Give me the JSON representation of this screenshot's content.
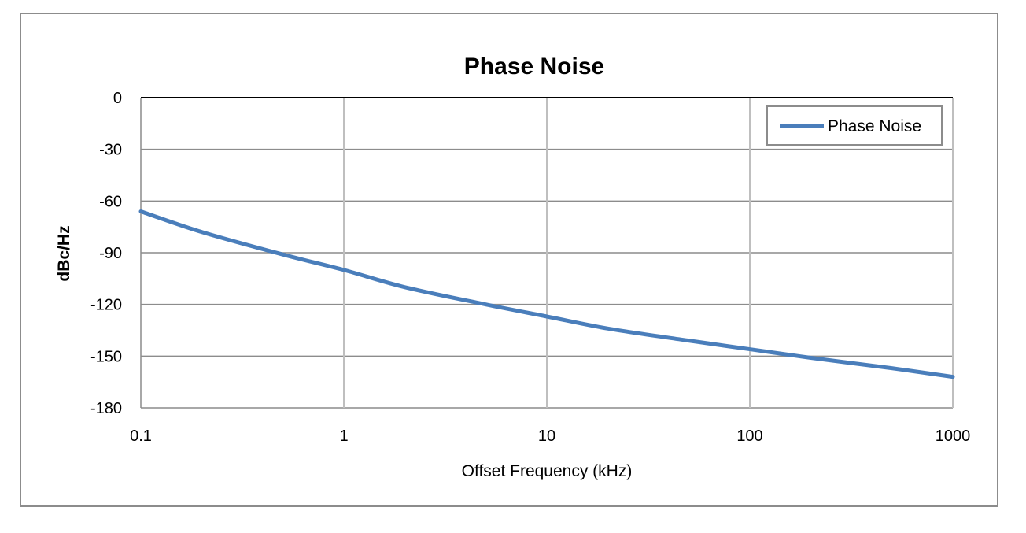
{
  "chart_data": {
    "type": "line",
    "title": "Phase Noise",
    "xlabel": "Offset Frequency (kHz)",
    "ylabel": "dBc/Hz",
    "xscale": "log",
    "xlim": [
      0.1,
      1000
    ],
    "ylim": [
      -180,
      0
    ],
    "xticks": [
      0.1,
      1,
      10,
      100,
      1000
    ],
    "xtick_labels": [
      "0.1",
      "1",
      "10",
      "100",
      "1000"
    ],
    "yticks": [
      0,
      -30,
      -60,
      -90,
      -120,
      -150,
      -180
    ],
    "ytick_labels": [
      "0",
      "-30",
      "-60",
      "-90",
      "-120",
      "-150",
      "-180"
    ],
    "grid": true,
    "legend_position": "top-right",
    "series": [
      {
        "name": "Phase Noise",
        "color": "#4a7ebb",
        "x": [
          0.1,
          0.2,
          0.5,
          1,
          2,
          5,
          10,
          20,
          50,
          100,
          200,
          500,
          1000
        ],
        "y": [
          -66,
          -78,
          -91,
          -100,
          -110,
          -120,
          -127,
          -134,
          -141,
          -146,
          -151,
          -157,
          -162
        ]
      }
    ]
  }
}
